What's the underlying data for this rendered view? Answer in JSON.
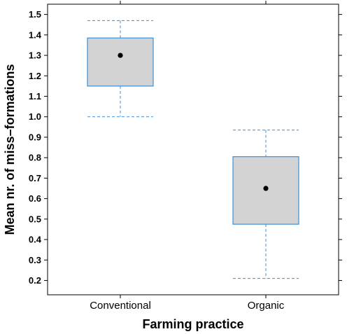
{
  "chart_data": {
    "type": "boxplot",
    "xlabel": "Farming practice",
    "ylabel": "Mean nr. of miss–formations",
    "ylim": [
      0.13,
      1.55
    ],
    "yticks": [
      0.2,
      0.3,
      0.4,
      0.5,
      0.6,
      0.7,
      0.8,
      0.9,
      1.0,
      1.1,
      1.2,
      1.3,
      1.4,
      1.5
    ],
    "yticklabels": [
      "0.2",
      "0.3",
      "0.4",
      "0.5",
      "0.6",
      "0.7",
      "0.8",
      "0.9",
      "1.0",
      "1.1",
      "1.2",
      "1.3",
      "1.4",
      "1.5"
    ],
    "categories": [
      "Conventional",
      "Organic"
    ],
    "boxes": [
      {
        "category": "Conventional",
        "whisker_low": 1.0,
        "q1": 1.15,
        "median": 1.3,
        "q3": 1.385,
        "whisker_high": 1.47
      },
      {
        "category": "Organic",
        "whisker_low": 0.21,
        "q1": 0.475,
        "median": 0.65,
        "q3": 0.805,
        "whisker_high": 0.935
      }
    ],
    "colors": {
      "box_fill": "#d3d3d3",
      "box_stroke": "#3a8fd6",
      "whisker": "#3a8fd6",
      "median_dot": "#000000"
    },
    "grid": false
  }
}
